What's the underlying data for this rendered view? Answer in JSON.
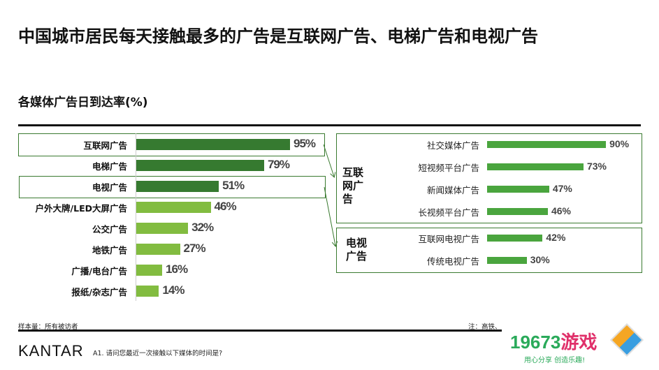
{
  "title": "中国城市居民每天接触最多的广告是互联网广告、电梯广告和电视广告",
  "subtitle": "各媒体广告日到达率(%)",
  "footer": {
    "sample": "样本量：所有被访者",
    "note": "注：高铁、",
    "question": "A1. 请问您最近一次接触以下媒体的时间是?",
    "brand": "KANTAR",
    "watermark": "19673游戏 用心分享 创造乐趣!"
  },
  "colors": {
    "dark": "#367a30",
    "light": "#82bc40",
    "right": "#4aa53e"
  },
  "chart_data": [
    {
      "type": "bar",
      "orientation": "horizontal",
      "title": "各媒体广告日到达率(%)",
      "categories": [
        "互联网广告",
        "电梯广告",
        "电视广告",
        "户外大牌/LED大屏广告",
        "公交广告",
        "地铁广告",
        "广播/电台广告",
        "报纸/杂志广告"
      ],
      "values": [
        95,
        79,
        51,
        46,
        32,
        27,
        16,
        14
      ],
      "labels": [
        "95%",
        "79%",
        "51%",
        "46%",
        "32%",
        "27%",
        "16%",
        "14%"
      ],
      "highlight": [
        true,
        true,
        true,
        false,
        false,
        false,
        false,
        false
      ],
      "xlim": [
        0,
        100
      ]
    },
    {
      "type": "bar",
      "orientation": "horizontal",
      "groups": [
        {
          "name": "互联网广告",
          "categories": [
            "社交媒体广告",
            "短视频平台广告",
            "新闻媒体广告",
            "长视频平台广告"
          ],
          "values": [
            90,
            73,
            47,
            46
          ],
          "labels": [
            "90%",
            "73%",
            "47%",
            "46%"
          ]
        },
        {
          "name": "电视广告",
          "categories": [
            "互联网电视广告",
            "传统电视广告"
          ],
          "values": [
            42,
            30
          ],
          "labels": [
            "42%",
            "30%"
          ]
        }
      ],
      "xlim": [
        0,
        100
      ]
    }
  ]
}
